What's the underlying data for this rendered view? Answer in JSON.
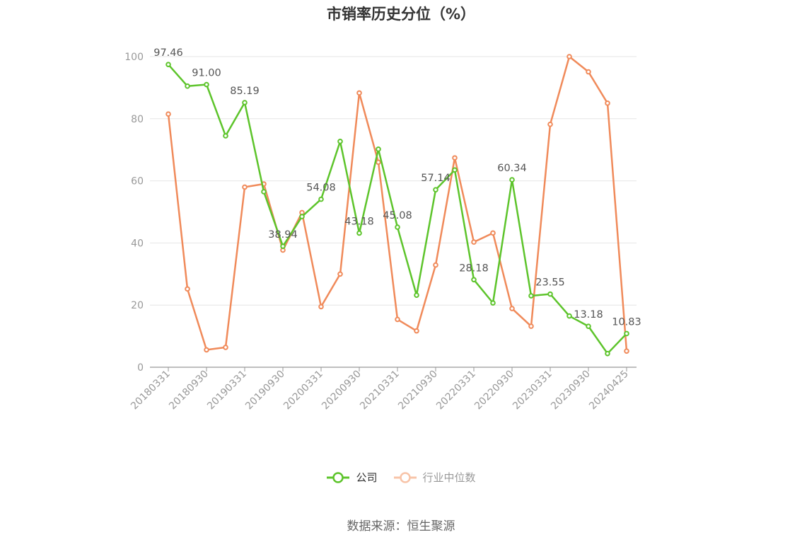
{
  "chart_data": {
    "type": "line",
    "title": "市销率历史分位（%）",
    "ylim": [
      0,
      100
    ],
    "yticks": [
      0,
      20,
      40,
      60,
      80,
      100
    ],
    "grid": true,
    "legend_position": "bottom",
    "x": [
      "20180331",
      "20180630",
      "20180930",
      "20181231",
      "20190331",
      "20190630",
      "20190930",
      "20191231",
      "20200331",
      "20200630",
      "20200930",
      "20201231",
      "20210331",
      "20210630",
      "20210930",
      "20211231",
      "20220331",
      "20220630",
      "20220930",
      "20221231",
      "20230331",
      "20230630",
      "20230930",
      "20231231",
      "20240425"
    ],
    "xtick_labels": [
      "20180331",
      "20180930",
      "20190331",
      "20190930",
      "20200331",
      "20200930",
      "20210331",
      "20210930",
      "20220331",
      "20220930",
      "20230331",
      "20230930",
      "20240425"
    ],
    "series": [
      {
        "name": "公司",
        "color": "#5dc42b",
        "values": [
          97.46,
          90.5,
          91.0,
          74.5,
          85.19,
          56.5,
          38.94,
          48.5,
          54.08,
          72.7,
          43.18,
          70.2,
          45.08,
          23.2,
          57.14,
          63.5,
          28.18,
          20.7,
          60.34,
          23.0,
          23.55,
          16.5,
          13.18,
          4.4,
          10.83
        ],
        "labels": [
          "97.46",
          "",
          "91.00",
          "",
          "85.19",
          "",
          "38.94",
          "",
          "54.08",
          "",
          "43.18",
          "",
          "45.08",
          "",
          "57.14",
          "",
          "28.18",
          "",
          "60.34",
          "",
          "23.55",
          "",
          "13.18",
          "",
          "10.83"
        ]
      },
      {
        "name": "行业中位数",
        "color": "#f08a5a",
        "values": [
          81.5,
          25.2,
          5.6,
          6.4,
          58.0,
          59.0,
          37.7,
          49.8,
          19.5,
          30.0,
          88.3,
          66.0,
          15.4,
          11.7,
          32.9,
          67.4,
          40.3,
          43.2,
          18.9,
          13.2,
          78.2,
          100.0,
          95.1,
          85.0,
          5.2
        ]
      }
    ]
  },
  "legend": {
    "company_label": "公司",
    "industry_label": "行业中位数"
  },
  "footer": {
    "source": "数据来源：恒生聚源"
  }
}
